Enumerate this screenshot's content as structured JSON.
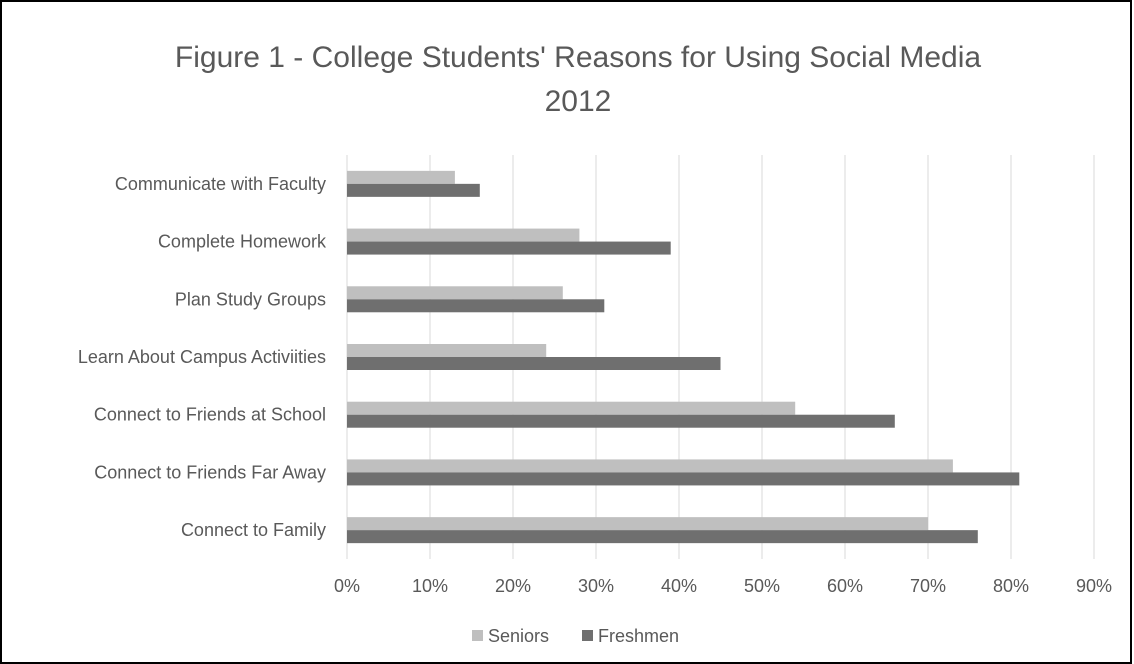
{
  "chart_data": {
    "type": "bar",
    "orientation": "horizontal",
    "title": "Figure 1 - College Students' Reasons for Using Social Media",
    "subtitle": "2012",
    "xlabel": "",
    "ylabel": "",
    "categories": [
      "Communicate with Faculty",
      "Complete Homework",
      "Plan Study Groups",
      "Learn About Campus Activiities",
      "Connect to Friends at School",
      "Connect to Friends Far Away",
      "Connect to Family"
    ],
    "series": [
      {
        "name": "Seniors",
        "color": "#bfbfbf",
        "values": [
          0.13,
          0.28,
          0.26,
          0.24,
          0.54,
          0.73,
          0.7
        ]
      },
      {
        "name": "Freshmen",
        "color": "#6f6f6f",
        "values": [
          0.16,
          0.39,
          0.31,
          0.45,
          0.66,
          0.81,
          0.76
        ]
      }
    ],
    "xlim": [
      0,
      0.9
    ],
    "ticks": [
      0,
      0.1,
      0.2,
      0.3,
      0.4,
      0.5,
      0.6,
      0.7,
      0.8,
      0.9
    ],
    "tick_labels": [
      "0%",
      "10%",
      "20%",
      "30%",
      "40%",
      "50%",
      "60%",
      "70%",
      "80%",
      "90%"
    ],
    "grid": true,
    "legend_position": "bottom"
  }
}
